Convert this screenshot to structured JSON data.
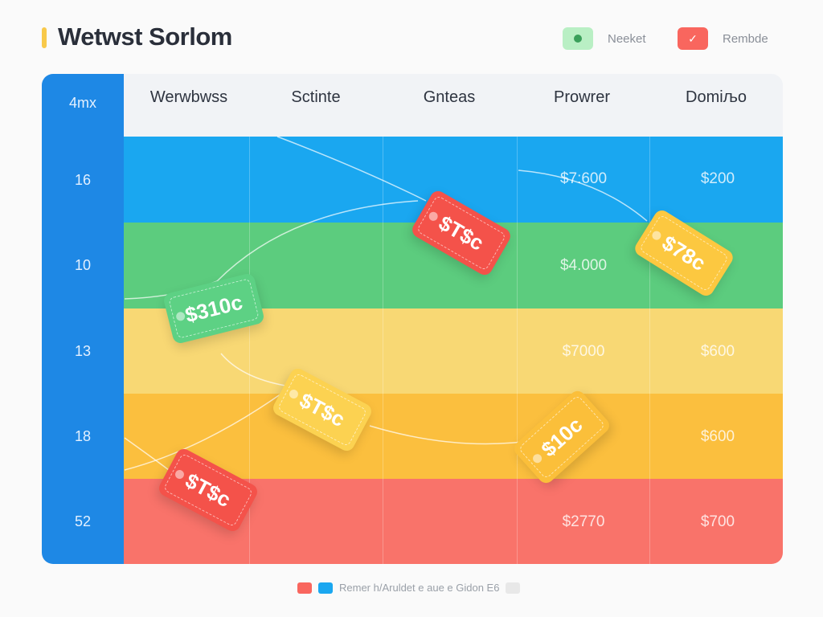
{
  "header": {
    "title": "Wetwst Sorlom"
  },
  "legend": [
    {
      "label": "Neeket",
      "color": "#b9efc4",
      "icon": "dot-icon"
    },
    {
      "label": "Rembde",
      "color": "#f9665e",
      "icon": "check-icon"
    }
  ],
  "table": {
    "corner_label": "4mx",
    "columns": [
      "Werwbwss",
      "Sctinte",
      "Gnteas",
      "Prowrer",
      "Domiљo"
    ],
    "rows": [
      {
        "label": "16",
        "color": "#1aa7f0",
        "values": [
          "",
          "",
          "",
          "$7:600",
          "$200"
        ]
      },
      {
        "label": "10",
        "color": "#5ccc7e",
        "values": [
          "",
          "",
          "",
          "$4.000",
          "$"
        ]
      },
      {
        "label": "13",
        "color": "#f8d874",
        "values": [
          "",
          "",
          "",
          "$7000",
          "$600"
        ]
      },
      {
        "label": "18",
        "color": "#fbbf3e",
        "values": [
          "",
          "",
          "",
          "",
          "$600"
        ]
      },
      {
        "label": "52",
        "color": "#f9736a",
        "values": [
          "",
          "",
          "",
          "$2770",
          "$700"
        ]
      }
    ]
  },
  "tags": [
    {
      "text": "$T$c",
      "color": "#f4524a"
    },
    {
      "text": "$310c",
      "color": "#5dd184"
    },
    {
      "text": "$T$c",
      "color": "#fcd251"
    },
    {
      "text": "$T$c",
      "color": "#f4524a"
    },
    {
      "text": "$10c",
      "color": "#fbbf3a"
    },
    {
      "text": "$78c",
      "color": "#fcc840"
    }
  ],
  "bottom_legend": {
    "text": "Remer h/Aruldet e aue e Gidon  E6",
    "colors": [
      "#f9665e",
      "#1aa7f0",
      "#e8e8e8"
    ]
  }
}
